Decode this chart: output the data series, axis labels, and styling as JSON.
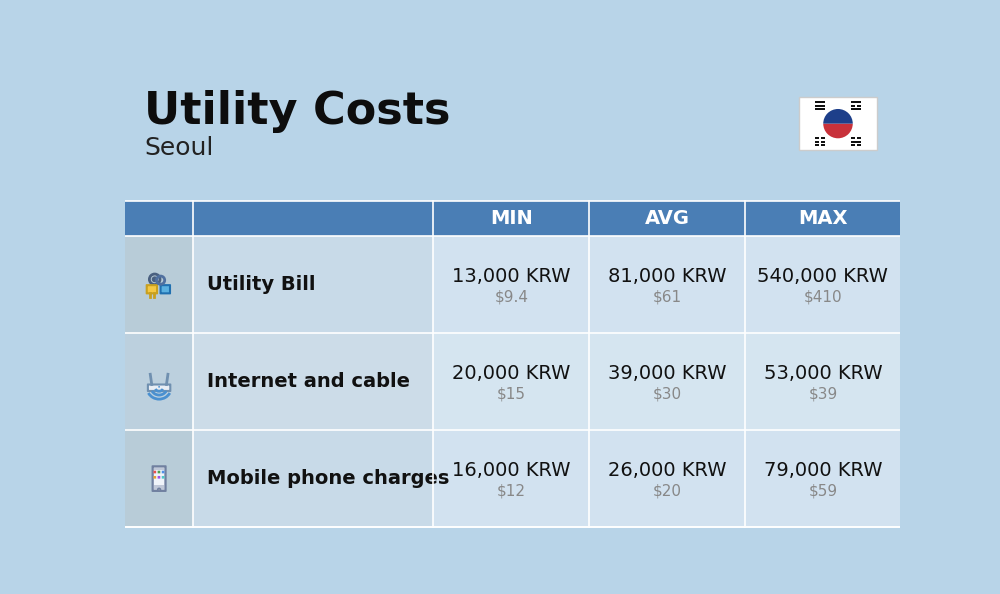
{
  "title": "Utility Costs",
  "subtitle": "Seoul",
  "background_color": "#b8d4e8",
  "header_bg_color": "#4a7eb5",
  "header_text_color": "#ffffff",
  "columns": [
    "MIN",
    "AVG",
    "MAX"
  ],
  "rows": [
    {
      "label": "Utility Bill",
      "icon": "utility",
      "min_krw": "13,000 KRW",
      "min_usd": "$9.4",
      "avg_krw": "81,000 KRW",
      "avg_usd": "$61",
      "max_krw": "540,000 KRW",
      "max_usd": "$410"
    },
    {
      "label": "Internet and cable",
      "icon": "internet",
      "min_krw": "20,000 KRW",
      "min_usd": "$15",
      "avg_krw": "39,000 KRW",
      "avg_usd": "$30",
      "max_krw": "53,000 KRW",
      "max_usd": "$39"
    },
    {
      "label": "Mobile phone charges",
      "icon": "mobile",
      "min_krw": "16,000 KRW",
      "min_usd": "$12",
      "avg_krw": "26,000 KRW",
      "avg_usd": "$20",
      "max_krw": "79,000 KRW",
      "max_usd": "$59"
    }
  ],
  "title_fontsize": 32,
  "subtitle_fontsize": 18,
  "header_fontsize": 14,
  "label_fontsize": 14,
  "value_fontsize": 14,
  "usd_fontsize": 11,
  "row_even_bg": "#ccdde8",
  "row_odd_bg": "#d5e5f0",
  "icon_even_bg": "#b8cfe0",
  "icon_odd_bg": "#c0d5e5",
  "label_even_bg": "#ccdde8",
  "label_odd_bg": "#d5e5f0"
}
